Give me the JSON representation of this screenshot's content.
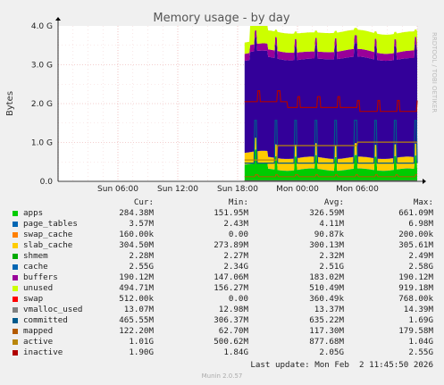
{
  "chart_data": {
    "type": "area",
    "title": "Memory usage - by day",
    "ylabel": "Bytes",
    "ylim": [
      0,
      4.0
    ],
    "y_ticks": [
      "0.0",
      "1.0 G",
      "2.0 G",
      "3.0 G",
      "4.0 G"
    ],
    "x_ticks": [
      "Sun 06:00",
      "Sun 12:00",
      "Sun 18:00",
      "Mon 00:00",
      "Mon 06:00"
    ],
    "x_range_hours": [
      0,
      36
    ],
    "data_start_hour": 18.7,
    "series": [
      {
        "name": "apps",
        "color": "#00cc00",
        "level": 0.3
      },
      {
        "name": "page_tables",
        "color": "#0066b3",
        "level": 0.004
      },
      {
        "name": "swap_cache",
        "color": "#ff8000",
        "level": 0.0002
      },
      {
        "name": "slab_cache",
        "color": "#ffcc00",
        "level": 0.3
      },
      {
        "name": "shmem",
        "color": "#330099",
        "level": 0.002
      },
      {
        "name": "cache",
        "color": "#330099",
        "level": 2.55
      },
      {
        "name": "buffers",
        "color": "#990099",
        "level": 0.19
      },
      {
        "name": "unused",
        "color": "#ccff00",
        "level": 0.49
      },
      {
        "name": "swap",
        "color": "#ff0000",
        "level": 0.0005
      },
      {
        "name": "vmalloc_used",
        "color": "#808080",
        "level": 0.013
      },
      {
        "name": "committed",
        "color": "#005a8c",
        "level": 0.47
      },
      {
        "name": "mapped",
        "color": "#9e6b00",
        "level": 0.12
      },
      {
        "name": "active",
        "color": "#b8860b",
        "level": 1.01
      },
      {
        "name": "inactive",
        "color": "#b00000",
        "level": 1.9
      }
    ]
  },
  "legend": {
    "headers": [
      "Cur:",
      "Min:",
      "Avg:",
      "Max:"
    ],
    "rows": [
      {
        "name": "apps",
        "color": "#00cc00",
        "cur": "284.38M",
        "min": "151.95M",
        "avg": "326.59M",
        "max": "661.09M"
      },
      {
        "name": "page_tables",
        "color": "#0066b3",
        "cur": "3.57M",
        "min": "2.43M",
        "avg": "4.11M",
        "max": "6.98M"
      },
      {
        "name": "swap_cache",
        "color": "#ff8000",
        "cur": "160.00k",
        "min": "0.00",
        "avg": "90.87k",
        "max": "200.00k"
      },
      {
        "name": "slab_cache",
        "color": "#ffcc00",
        "cur": "304.50M",
        "min": "273.89M",
        "avg": "300.13M",
        "max": "305.61M"
      },
      {
        "name": "shmem",
        "color": "#00aa00",
        "cur": "2.28M",
        "min": "2.27M",
        "avg": "2.32M",
        "max": "2.49M"
      },
      {
        "name": "cache",
        "color": "#0066b3",
        "cur": "2.55G",
        "min": "2.34G",
        "avg": "2.51G",
        "max": "2.58G"
      },
      {
        "name": "buffers",
        "color": "#990099",
        "cur": "190.12M",
        "min": "147.06M",
        "avg": "183.02M",
        "max": "190.12M"
      },
      {
        "name": "unused",
        "color": "#ccff00",
        "cur": "494.71M",
        "min": "156.27M",
        "avg": "510.49M",
        "max": "919.18M"
      },
      {
        "name": "swap",
        "color": "#ff0000",
        "cur": "512.00k",
        "min": "0.00",
        "avg": "360.49k",
        "max": "768.00k"
      },
      {
        "name": "vmalloc_used",
        "color": "#808080",
        "cur": "13.07M",
        "min": "12.98M",
        "avg": "13.37M",
        "max": "14.39M"
      },
      {
        "name": "committed",
        "color": "#005a8c",
        "cur": "465.55M",
        "min": "306.37M",
        "avg": "635.22M",
        "max": "1.69G"
      },
      {
        "name": "mapped",
        "color": "#b35a00",
        "cur": "122.20M",
        "min": "62.70M",
        "avg": "117.30M",
        "max": "179.58M"
      },
      {
        "name": "active",
        "color": "#b8860b",
        "cur": "1.01G",
        "min": "500.62M",
        "avg": "877.68M",
        "max": "1.04G"
      },
      {
        "name": "inactive",
        "color": "#b00000",
        "cur": "1.90G",
        "min": "1.84G",
        "avg": "2.05G",
        "max": "2.55G"
      }
    ]
  },
  "footer": {
    "last_update": "Last update: Mon Feb  2 11:45:50 2026",
    "munin": "Munin 2.0.57",
    "watermark": "RRDTOOL / TOBI OETIKER"
  }
}
